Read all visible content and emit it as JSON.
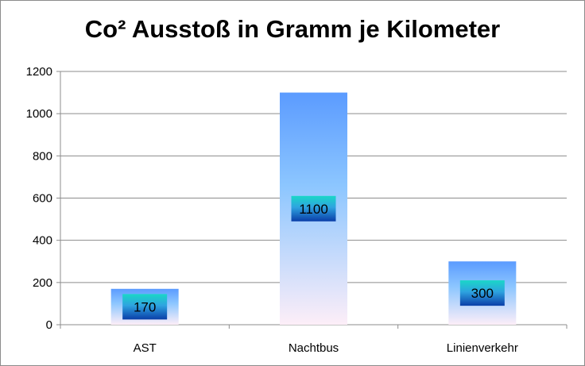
{
  "chart_data": {
    "type": "bar",
    "title": "Co² Ausstoß in Gramm je Kilometer",
    "categories": [
      "AST",
      "Nachtbus",
      "Linienverkehr"
    ],
    "values": [
      170,
      1100,
      300
    ],
    "data_labels": [
      "170",
      "1100",
      "300"
    ],
    "ylim": [
      0,
      1200
    ],
    "yticks": [
      0,
      200,
      400,
      600,
      800,
      1000,
      1200
    ],
    "ytick_labels": [
      "0",
      "200",
      "400",
      "600",
      "800",
      "1000",
      "1200"
    ],
    "xlabel": "",
    "ylabel": "",
    "grid": "horizontal",
    "legend": "none",
    "colors": {
      "bar_top": "#5b9bff",
      "bar_mid": "#8cc6ff",
      "bar_bottom": "#fdeef8",
      "label_top": "#1ad7c7",
      "label_bottom": "#0a3ea8",
      "grid": "#8c8c8c",
      "axis": "#8c8c8c"
    }
  }
}
